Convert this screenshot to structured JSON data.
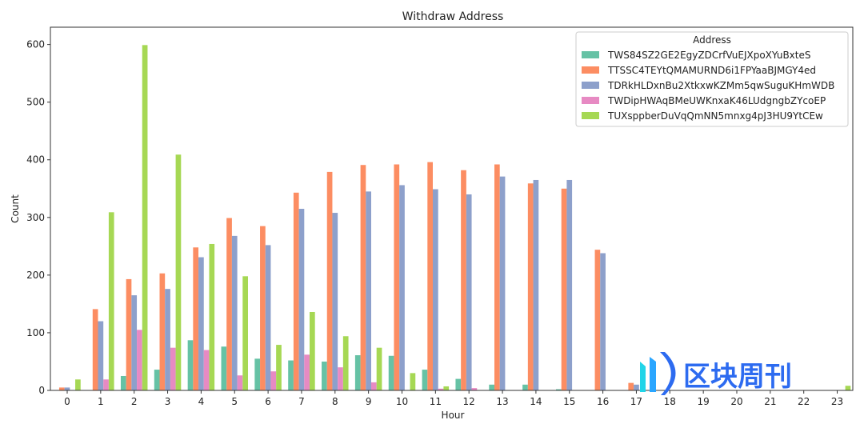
{
  "chart_data": {
    "type": "bar",
    "title": "Withdraw Address",
    "xlabel": "Hour",
    "ylabel": "Count",
    "ylim": [
      0,
      630
    ],
    "yticks": [
      0,
      100,
      200,
      300,
      400,
      500,
      600
    ],
    "categories": [
      "0",
      "1",
      "2",
      "3",
      "4",
      "5",
      "6",
      "7",
      "8",
      "9",
      "10",
      "11",
      "12",
      "13",
      "14",
      "15",
      "16",
      "17",
      "18",
      "19",
      "20",
      "21",
      "22",
      "23"
    ],
    "legend_title": "Address",
    "legend_position": "upper-right",
    "series": [
      {
        "name": "TWS84SZ2GE2EgyZDCrfVuEJXpoXYuBxteS",
        "color": "#66c2a5",
        "values": [
          0,
          0,
          25,
          36,
          87,
          76,
          55,
          52,
          50,
          61,
          60,
          36,
          20,
          10,
          10,
          2,
          0,
          0,
          0,
          0,
          0,
          0,
          0,
          0
        ]
      },
      {
        "name": "TTSSC4TEYtQMAMURND6i1FPYaaBJMGY4ed",
        "color": "#fc8d62",
        "values": [
          5,
          141,
          193,
          203,
          248,
          299,
          285,
          343,
          379,
          391,
          392,
          396,
          382,
          392,
          359,
          350,
          244,
          13,
          0,
          0,
          0,
          0,
          0,
          0
        ]
      },
      {
        "name": "TDRkHLDxnBu2XtkxwKZMm5qwSuguKHmWDB",
        "color": "#8da0cb",
        "values": [
          5,
          120,
          165,
          176,
          231,
          268,
          252,
          315,
          308,
          345,
          356,
          349,
          340,
          371,
          365,
          365,
          238,
          10,
          0,
          0,
          0,
          0,
          0,
          0
        ]
      },
      {
        "name": "TWDipHWAqBMeUWKnxaK46LUdgngbZYcoEP",
        "color": "#e78ac3",
        "values": [
          0,
          19,
          105,
          74,
          70,
          26,
          33,
          62,
          40,
          14,
          0,
          3,
          4,
          0,
          0,
          0,
          0,
          0,
          0,
          0,
          0,
          0,
          0,
          0
        ]
      },
      {
        "name": "TUXsppberDuVqQmNN5mnxg4pJ3HU9YtCEw",
        "color": "#a6d854",
        "values": [
          19,
          309,
          599,
          409,
          254,
          198,
          79,
          136,
          94,
          74,
          30,
          7,
          0,
          0,
          0,
          0,
          0,
          0,
          0,
          0,
          0,
          0,
          0,
          8
        ]
      }
    ]
  },
  "watermark": {
    "text": "区块周刊",
    "color": "#2d6bf0"
  }
}
